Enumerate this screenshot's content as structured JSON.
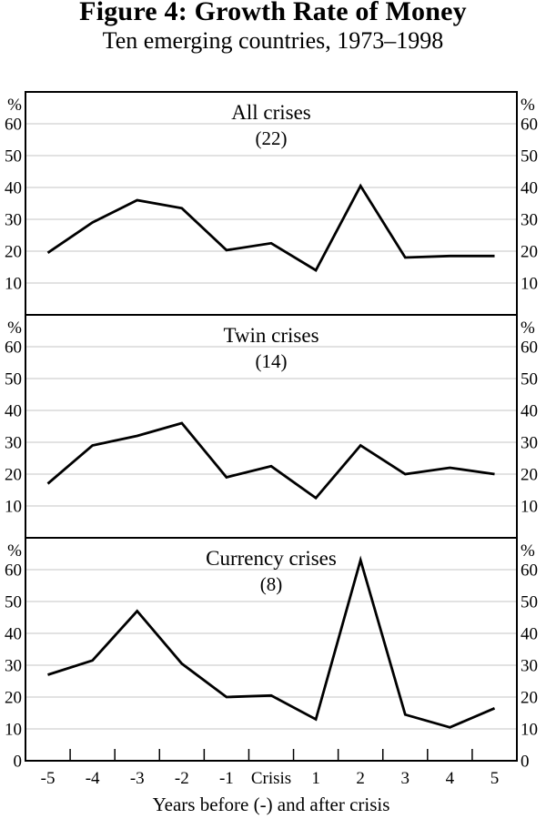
{
  "header": {
    "title": "Figure 4: Growth Rate of Money",
    "subtitle": "Ten emerging countries, 1973–1998"
  },
  "axis": {
    "percent_label": "%",
    "zero_label": "0",
    "y_ticks": [
      60,
      50,
      40,
      30,
      20,
      10
    ],
    "x_title": "Years before (-) and after crisis"
  },
  "chart_data": {
    "type": "line",
    "categories": [
      "-5",
      "-4",
      "-3",
      "-2",
      "-1",
      "Crisis",
      "1",
      "2",
      "3",
      "4",
      "5"
    ],
    "xlabel": "Years before (-) and after crisis",
    "ylabel": "%",
    "ylim": [
      0,
      70
    ],
    "grid": true,
    "legend_position": "none",
    "line_color": "#000000",
    "grid_color": "#c6c6c6",
    "panels": [
      {
        "title": "All crises",
        "count": "(22)",
        "values": [
          19.5,
          29,
          36,
          33.5,
          20.3,
          22.5,
          14,
          40.5,
          18,
          18.5,
          18.5
        ]
      },
      {
        "title": "Twin crises",
        "count": "(14)",
        "values": [
          17,
          29,
          32,
          36,
          19,
          22.5,
          12.5,
          29,
          20,
          22,
          20
        ]
      },
      {
        "title": "Currency crises",
        "count": "(8)",
        "values": [
          27,
          31.5,
          47,
          30.5,
          20,
          20.5,
          13,
          63,
          14.5,
          10.5,
          16.5
        ]
      }
    ]
  }
}
